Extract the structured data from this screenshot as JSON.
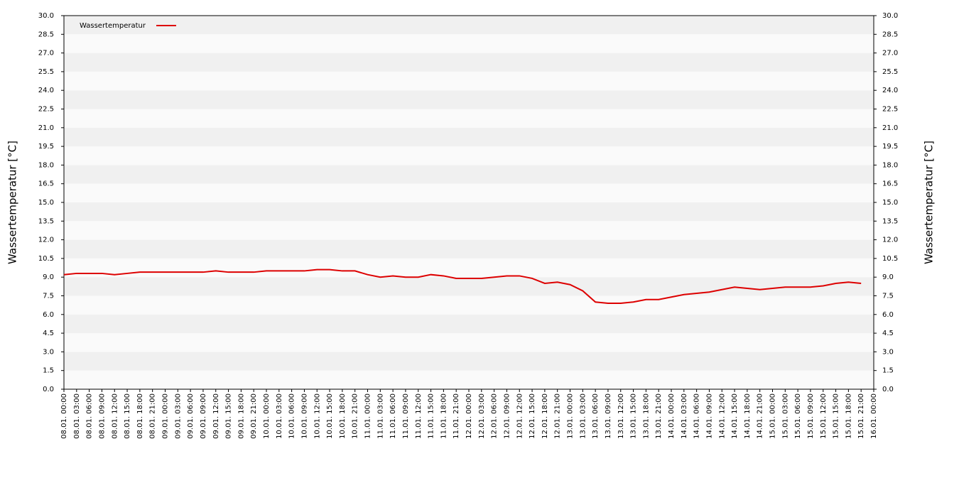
{
  "chart_data": {
    "type": "line",
    "y_label": "Wassertemperatur [°C]",
    "y2_label": "Wassertemperatur [°C]",
    "categories": [
      "08.01. 00:00",
      "08.01. 03:00",
      "08.01. 06:00",
      "08.01. 09:00",
      "08.01. 12:00",
      "08.01. 15:00",
      "08.01. 18:00",
      "08.01. 21:00",
      "09.01. 00:00",
      "09.01. 03:00",
      "09.01. 06:00",
      "09.01. 09:00",
      "09.01. 12:00",
      "09.01. 15:00",
      "09.01. 18:00",
      "09.01. 21:00",
      "10.01. 00:00",
      "10.01. 03:00",
      "10.01. 06:00",
      "10.01. 09:00",
      "10.01. 12:00",
      "10.01. 15:00",
      "10.01. 18:00",
      "10.01. 21:00",
      "11.01. 00:00",
      "11.01. 03:00",
      "11.01. 06:00",
      "11.01. 09:00",
      "11.01. 12:00",
      "11.01. 15:00",
      "11.01. 18:00",
      "11.01. 21:00",
      "12.01. 00:00",
      "12.01. 03:00",
      "12.01. 06:00",
      "12.01. 09:00",
      "12.01. 12:00",
      "12.01. 15:00",
      "12.01. 18:00",
      "12.01. 21:00",
      "13.01. 00:00",
      "13.01. 03:00",
      "13.01. 06:00",
      "13.01. 09:00",
      "13.01. 12:00",
      "13.01. 15:00",
      "13.01. 18:00",
      "13.01. 21:00",
      "14.01. 00:00",
      "14.01. 03:00",
      "14.01. 06:00",
      "14.01. 09:00",
      "14.01. 12:00",
      "14.01. 15:00",
      "14.01. 18:00",
      "14.01. 21:00",
      "15.01. 00:00",
      "15.01. 03:00",
      "15.01. 06:00",
      "15.01. 09:00",
      "15.01. 12:00",
      "15.01. 15:00",
      "15.01. 18:00",
      "15.01. 21:00",
      "16.01. 00:00"
    ],
    "series": [
      {
        "name": "Wassertemperatur",
        "color": "#dd0000",
        "values": [
          9.2,
          9.3,
          9.3,
          9.3,
          9.2,
          9.3,
          9.4,
          9.4,
          9.4,
          9.4,
          9.4,
          9.4,
          9.5,
          9.4,
          9.4,
          9.4,
          9.5,
          9.5,
          9.5,
          9.5,
          9.6,
          9.6,
          9.5,
          9.5,
          9.2,
          9.0,
          9.1,
          9.0,
          9.0,
          9.2,
          9.1,
          8.9,
          8.9,
          8.9,
          9.0,
          9.1,
          9.1,
          8.9,
          8.5,
          8.6,
          8.4,
          7.9,
          7.0,
          6.9,
          6.9,
          7.0,
          7.2,
          7.2,
          7.4,
          7.6,
          7.7,
          7.8,
          8.0,
          8.2,
          8.1,
          8.0,
          8.1,
          8.2,
          8.2,
          8.2,
          8.3,
          8.5,
          8.6,
          8.5,
          null
        ]
      }
    ],
    "ylim": [
      0,
      30
    ],
    "yticks": [
      {
        "value": 0,
        "label": "0.0"
      },
      1.5,
      {
        "value": 3,
        "label": "3.0"
      },
      4.5,
      {
        "value": 6,
        "label": "6.0"
      },
      7.5,
      {
        "value": 9,
        "label": "9.0"
      },
      10.5,
      {
        "value": 12,
        "label": "12.0"
      },
      13.5,
      {
        "value": 15,
        "label": "15.0"
      },
      16.5,
      {
        "value": 18,
        "label": "18.0"
      },
      19.5,
      {
        "value": 21,
        "label": "21.0"
      },
      22.5,
      {
        "value": 24,
        "label": "24.0"
      },
      25.5,
      {
        "value": 27,
        "label": "27.0"
      },
      28.5,
      {
        "value": 30,
        "label": "30.0"
      }
    ],
    "legend": "upper left"
  }
}
